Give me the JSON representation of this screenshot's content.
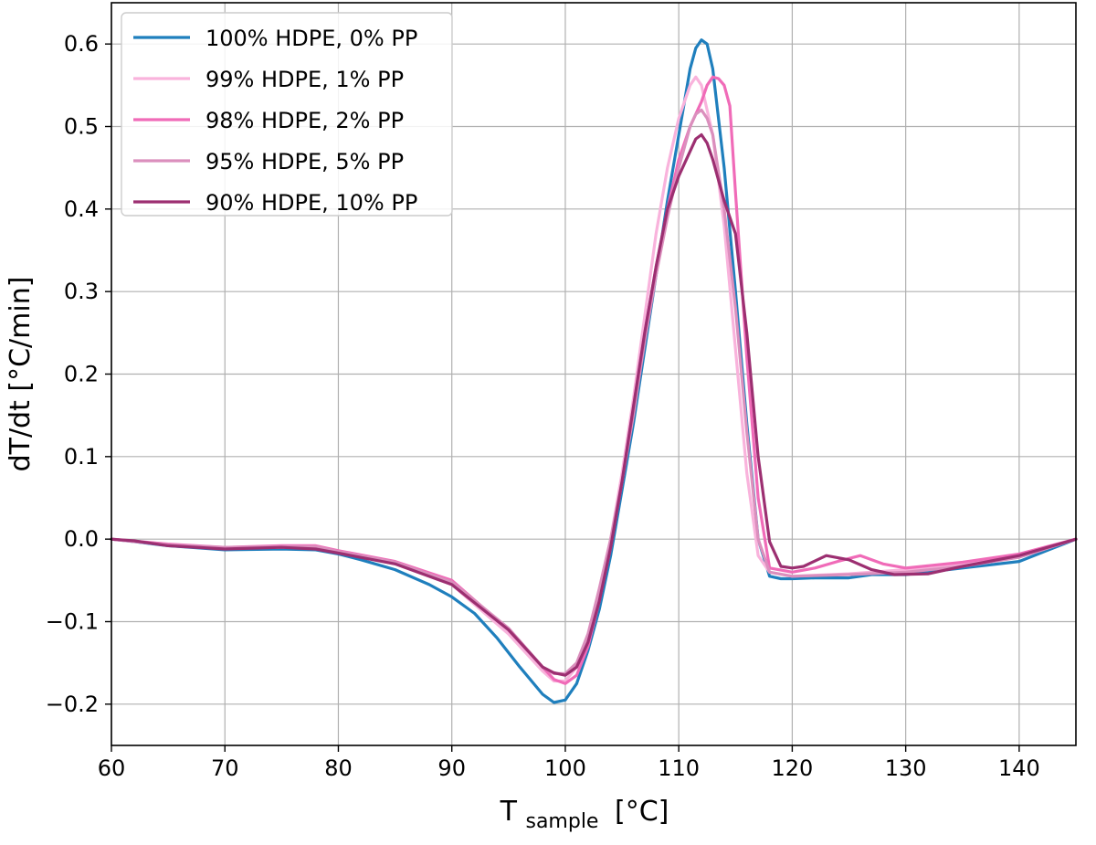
{
  "chart_data": {
    "type": "line",
    "title": "",
    "xlabel_main": "T",
    "xlabel_sub": "sample",
    "xlabel_unit": "[°C]",
    "ylabel": "dT/dt [°C/min]",
    "xlim": [
      60,
      145
    ],
    "ylim": [
      -0.25,
      0.65
    ],
    "xticks": [
      60,
      70,
      80,
      90,
      100,
      110,
      120,
      130,
      140
    ],
    "yticks": [
      -0.2,
      -0.1,
      0.0,
      0.1,
      0.2,
      0.3,
      0.4,
      0.5,
      0.6
    ],
    "xtick_labels": [
      "60",
      "70",
      "80",
      "90",
      "100",
      "110",
      "120",
      "130",
      "140"
    ],
    "ytick_labels": [
      "−0.2",
      "−0.1",
      "0.0",
      "0.1",
      "0.2",
      "0.3",
      "0.4",
      "0.5",
      "0.6"
    ],
    "grid": true,
    "legend_position": "top-left",
    "series": [
      {
        "name": "100% HDPE, 0% PP",
        "color": "#1f7fbd",
        "x": [
          60,
          62,
          65,
          70,
          75,
          78,
          80,
          82,
          85,
          88,
          90,
          92,
          94,
          96,
          98,
          99,
          100,
          101,
          102,
          103,
          104,
          105,
          106,
          107,
          108,
          109,
          110,
          111,
          111.5,
          112,
          112.5,
          113,
          114,
          115,
          116,
          117,
          118,
          119,
          120,
          122,
          125,
          127,
          130,
          135,
          140,
          145
        ],
        "y": [
          0,
          -0.003,
          -0.008,
          -0.013,
          -0.012,
          -0.013,
          -0.018,
          -0.025,
          -0.037,
          -0.055,
          -0.07,
          -0.09,
          -0.12,
          -0.155,
          -0.188,
          -0.198,
          -0.195,
          -0.175,
          -0.135,
          -0.085,
          -0.02,
          0.06,
          0.14,
          0.23,
          0.32,
          0.41,
          0.49,
          0.57,
          0.595,
          0.605,
          0.6,
          0.57,
          0.45,
          0.3,
          0.14,
          0.0,
          -0.045,
          -0.048,
          -0.048,
          -0.047,
          -0.047,
          -0.043,
          -0.043,
          -0.035,
          -0.027,
          0.0
        ]
      },
      {
        "name": "99% HDPE, 1% PP",
        "color": "#f9b3dc",
        "x": [
          60,
          65,
          70,
          75,
          78,
          80,
          85,
          90,
          95,
          98,
          99,
          100,
          101,
          102,
          103,
          104,
          105,
          106,
          107,
          108,
          109,
          110,
          111,
          111.5,
          112,
          113,
          114,
          115,
          116,
          117,
          118,
          120,
          125,
          130,
          135,
          140,
          145
        ],
        "y": [
          0,
          -0.007,
          -0.011,
          -0.01,
          -0.01,
          -0.016,
          -0.03,
          -0.055,
          -0.115,
          -0.16,
          -0.172,
          -0.172,
          -0.155,
          -0.12,
          -0.06,
          0.0,
          0.08,
          0.17,
          0.27,
          0.37,
          0.45,
          0.51,
          0.55,
          0.56,
          0.55,
          0.49,
          0.38,
          0.23,
          0.08,
          -0.02,
          -0.04,
          -0.045,
          -0.042,
          -0.037,
          -0.031,
          -0.02,
          0.0
        ]
      },
      {
        "name": "98% HDPE, 2% PP",
        "color": "#f06bb8",
        "x": [
          60,
          65,
          70,
          75,
          78,
          80,
          85,
          90,
          95,
          98,
          99,
          100,
          101,
          102,
          103,
          104,
          105,
          106,
          107,
          108,
          109,
          110,
          111,
          112,
          112.5,
          113,
          113.5,
          114,
          114.5,
          115,
          116,
          117,
          118,
          120,
          122,
          124,
          126,
          128,
          130,
          135,
          140,
          145
        ],
        "y": [
          0,
          -0.006,
          -0.01,
          -0.008,
          -0.008,
          -0.014,
          -0.027,
          -0.05,
          -0.11,
          -0.155,
          -0.17,
          -0.175,
          -0.165,
          -0.13,
          -0.075,
          -0.01,
          0.07,
          0.16,
          0.25,
          0.33,
          0.4,
          0.46,
          0.5,
          0.53,
          0.55,
          0.56,
          0.558,
          0.55,
          0.525,
          0.42,
          0.22,
          0.05,
          -0.035,
          -0.04,
          -0.035,
          -0.027,
          -0.02,
          -0.03,
          -0.035,
          -0.028,
          -0.018,
          0.0
        ]
      },
      {
        "name": "95% HDPE, 5% PP",
        "color": "#db8fbd",
        "x": [
          60,
          65,
          70,
          75,
          78,
          80,
          85,
          90,
          95,
          98,
          99,
          100,
          101,
          102,
          103,
          104,
          105,
          106,
          107,
          108,
          109,
          110,
          111,
          111.5,
          112,
          112.5,
          113,
          114,
          115,
          116,
          117,
          118,
          120,
          125,
          130,
          135,
          140,
          145
        ],
        "y": [
          0,
          -0.007,
          -0.01,
          -0.009,
          -0.009,
          -0.015,
          -0.028,
          -0.052,
          -0.108,
          -0.155,
          -0.163,
          -0.163,
          -0.15,
          -0.115,
          -0.06,
          0.0,
          0.07,
          0.15,
          0.24,
          0.32,
          0.39,
          0.45,
          0.5,
          0.515,
          0.52,
          0.51,
          0.49,
          0.4,
          0.28,
          0.13,
          0.0,
          -0.04,
          -0.045,
          -0.043,
          -0.04,
          -0.033,
          -0.022,
          0.0
        ]
      },
      {
        "name": "90% HDPE, 10% PP",
        "color": "#9c2f71",
        "x": [
          60,
          62,
          65,
          70,
          75,
          78,
          80,
          85,
          90,
          95,
          97,
          98,
          99,
          100,
          101,
          102,
          103,
          104,
          105,
          106,
          107,
          108,
          109,
          110,
          111,
          111.5,
          112,
          112.5,
          113,
          114,
          115,
          116,
          117,
          118,
          119,
          120,
          121,
          123,
          125,
          127,
          129,
          132,
          135,
          140,
          145
        ],
        "y": [
          0,
          -0.002,
          -0.008,
          -0.012,
          -0.01,
          -0.012,
          -0.017,
          -0.03,
          -0.055,
          -0.11,
          -0.14,
          -0.155,
          -0.162,
          -0.165,
          -0.155,
          -0.125,
          -0.075,
          -0.01,
          0.07,
          0.16,
          0.25,
          0.33,
          0.4,
          0.44,
          0.47,
          0.485,
          0.49,
          0.48,
          0.46,
          0.41,
          0.37,
          0.25,
          0.1,
          -0.003,
          -0.033,
          -0.035,
          -0.033,
          -0.02,
          -0.025,
          -0.037,
          -0.043,
          -0.042,
          -0.033,
          -0.02,
          0.0
        ]
      }
    ]
  }
}
